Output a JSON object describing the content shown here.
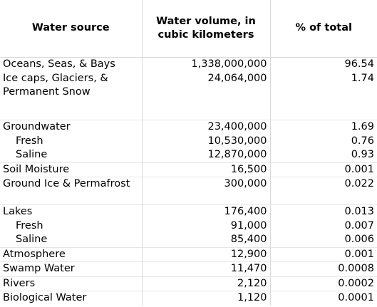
{
  "header": {
    "source": "Water source",
    "volume": "Water volume, in cubic kilometers",
    "percent": "% of total"
  },
  "rows": [
    {
      "source": "Oceans, Seas, & Bays",
      "volume": "1,338,000,000",
      "percent": "96.54"
    },
    {
      "source": "Ice caps, Glaciers, & Permanent Snow",
      "volume": "24,064,000",
      "percent": "1.74"
    },
    {
      "source": "Groundwater",
      "volume": "23,400,000",
      "percent": "1.69"
    },
    {
      "source": "Fresh",
      "volume": "10,530,000",
      "percent": "0.76"
    },
    {
      "source": "Saline",
      "volume": "12,870,000",
      "percent": "0.93"
    },
    {
      "source": "Soil Moisture",
      "volume": "16,500",
      "percent": "0.001"
    },
    {
      "source": "Ground Ice & Permafrost",
      "volume": "300,000",
      "percent": "0.022"
    },
    {
      "source": "Lakes",
      "volume": "176,400",
      "percent": "0.013"
    },
    {
      "source": "Fresh",
      "volume": "91,000",
      "percent": "0.007"
    },
    {
      "source": "Saline",
      "volume": "85,400",
      "percent": "0.006"
    },
    {
      "source": "Atmosphere",
      "volume": "12,900",
      "percent": "0.001"
    },
    {
      "source": "Swamp Water",
      "volume": "11,470",
      "percent": "0.0008"
    },
    {
      "source": "Rivers",
      "volume": "2,120",
      "percent": "0.0002"
    },
    {
      "source": "Biological Water",
      "volume": "1,120",
      "percent": "0.0001"
    }
  ],
  "colors": {
    "gridline": "#d9d9d9",
    "text": "#000000",
    "background": "#ffffff"
  }
}
